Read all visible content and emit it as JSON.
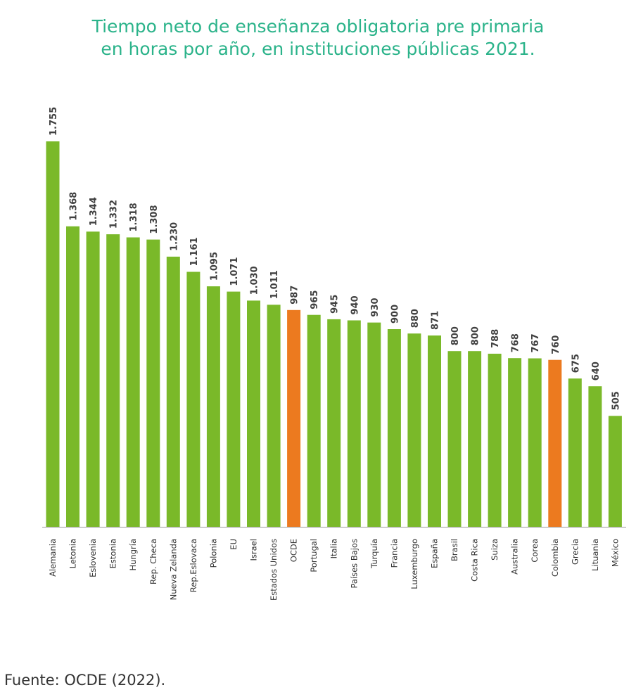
{
  "title_line1": "Tiempo neto de enseñanza obligatoria pre primaria",
  "title_line2": "en horas por año, en instituciones públicas 2021.",
  "source": "Fuente: OCDE (2022).",
  "colors": {
    "default_bar": "#7ab929",
    "highlight_bar": "#ec7a1f",
    "title": "#2bb38a"
  },
  "chart_data": {
    "type": "bar",
    "categories": [
      "Alemania",
      "Letonia",
      "Eslovenia",
      "Estonia",
      "Hungría",
      "Rep. Checa",
      "Nueva Zelanda",
      "Rep.Eslovaca",
      "Polonia",
      "EU",
      "Israel",
      "Estados Unidos",
      "OCDE",
      "Portugal",
      "Italia",
      "Países Bajos",
      "Turquía",
      "Francia",
      "Luxemburgo",
      "España",
      "Brasil",
      "Costa Rica",
      "Suiza",
      "Australia",
      "Corea",
      "Colombia",
      "Grecia",
      "Lituania",
      "México"
    ],
    "values": [
      1755,
      1368,
      1344,
      1332,
      1318,
      1308,
      1230,
      1161,
      1095,
      1071,
      1030,
      1011,
      987,
      965,
      945,
      940,
      930,
      900,
      880,
      871,
      800,
      800,
      788,
      768,
      767,
      760,
      675,
      640,
      505
    ],
    "value_labels": [
      "1.755",
      "1.368",
      "1.344",
      "1.332",
      "1.318",
      "1.308",
      "1.230",
      "1.161",
      "1.095",
      "1.071",
      "1.030",
      "1.011",
      "987",
      "965",
      "945",
      "940",
      "930",
      "900",
      "880",
      "871",
      "800",
      "800",
      "788",
      "768",
      "767",
      "760",
      "675",
      "640",
      "505"
    ],
    "highlighted": [
      "OCDE",
      "Colombia"
    ],
    "ylim": [
      0,
      1755
    ],
    "grid": false,
    "legend": "none"
  }
}
